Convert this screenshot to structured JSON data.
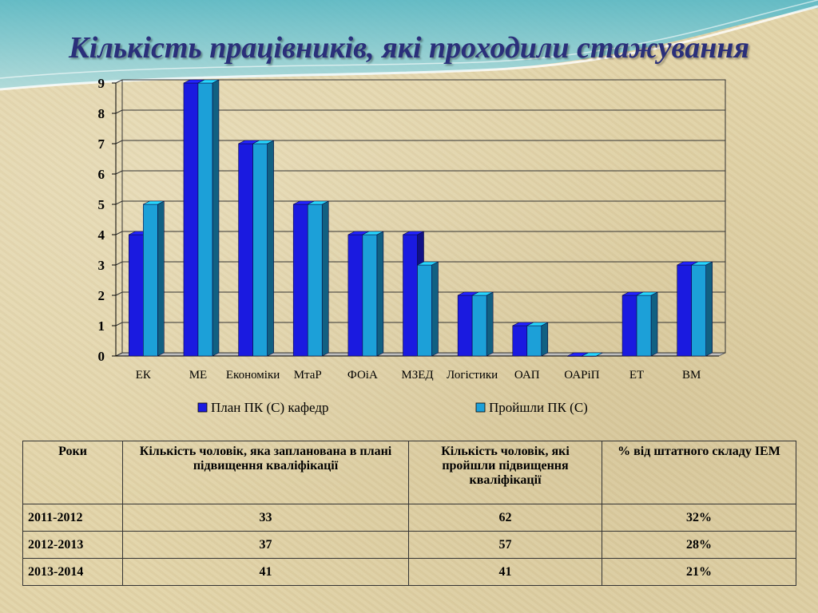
{
  "title": "Кількість працівників, які проходили стажування",
  "chart_data": {
    "type": "bar",
    "categories": [
      "ЕК",
      "МЕ",
      "Економіки",
      "МтаР",
      "ФОіА",
      "МЗЕД",
      "Логістики",
      "ОАП",
      "ОАРіП",
      "ЕТ",
      "ВМ"
    ],
    "series": [
      {
        "name": "План ПК (С) кафедр",
        "values": [
          4,
          9,
          7,
          5,
          4,
          4,
          2,
          1,
          0,
          2,
          3
        ],
        "color": "#1a1ae0"
      },
      {
        "name": "Пройшли ПК (С)",
        "values": [
          5,
          9,
          7,
          5,
          4,
          3,
          2,
          1,
          0,
          2,
          3
        ],
        "color": "#1ca0d8"
      }
    ],
    "yticks": [
      "0",
      "1",
      "2",
      "3",
      "4",
      "5",
      "6",
      "7",
      "8",
      "9"
    ],
    "ylim": [
      0,
      9
    ],
    "grid": true,
    "legend_position": "bottom"
  },
  "table": {
    "headers": [
      "Роки",
      "Кількість чоловік, яка запланована в плані підвищення кваліфікації",
      "Кількість чоловік, які пройшли підвищення кваліфікації",
      "% від штатного складу ІЕМ"
    ],
    "rows": [
      [
        "2011-2012",
        "33",
        "62",
        "32%"
      ],
      [
        "2012-2013",
        "37",
        "57",
        "28%"
      ],
      [
        "2013-2014",
        "41",
        "41",
        "21%"
      ]
    ]
  }
}
